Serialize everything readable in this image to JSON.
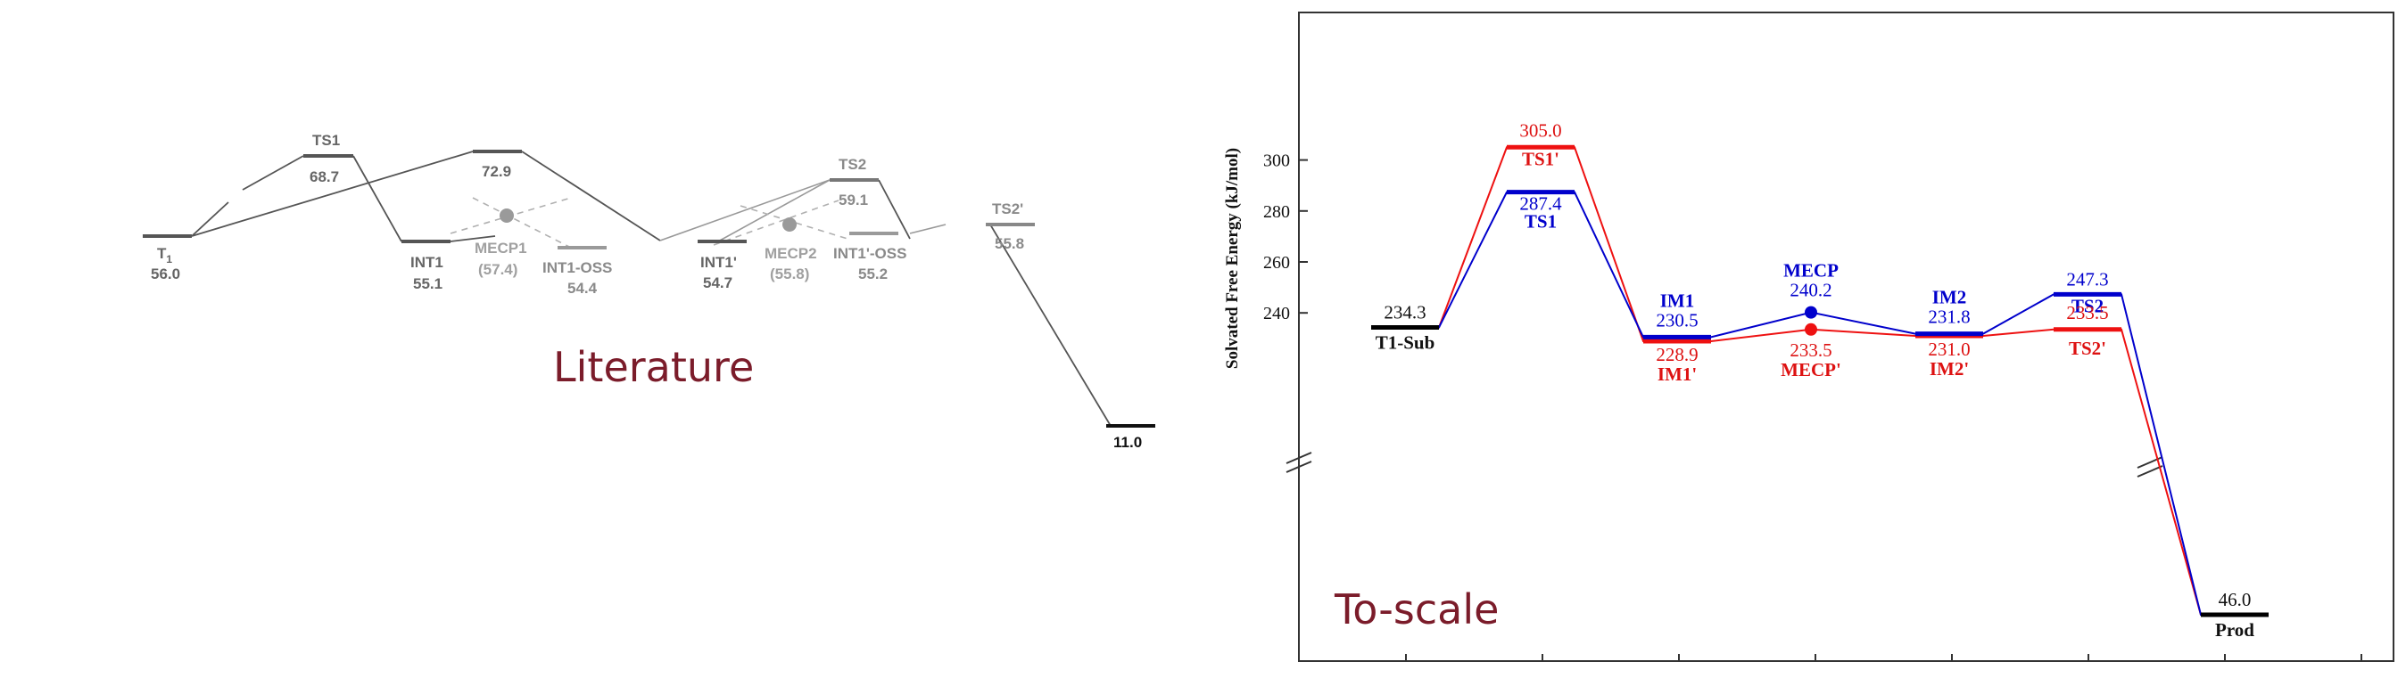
{
  "captions": {
    "left": "Literature",
    "right": "To-scale"
  },
  "chart_data": [
    {
      "type": "line",
      "name": "literature",
      "levels": [
        {
          "id": "T1",
          "label": "T",
          "sub": "1",
          "value": "56.0",
          "value_shown": true,
          "step": 0
        },
        {
          "id": "TS1",
          "label": "TS1",
          "value": "68.7",
          "value_shown": true,
          "step": 1
        },
        {
          "id": "INT1",
          "label": "INT1",
          "value": "55.1",
          "value_shown": true,
          "step": 2
        },
        {
          "id": "U",
          "label": "",
          "value": "72.9",
          "value_shown": true,
          "step": 2.5
        },
        {
          "id": "MECP1",
          "label": "MECP1",
          "value": "(57.4)",
          "value_shown": true,
          "step": 2.5
        },
        {
          "id": "OSS1",
          "label": "INT1-OSS",
          "value": "54.4",
          "value_shown": true,
          "step": 3
        },
        {
          "id": "INT1P",
          "label": "INT1'",
          "value": "54.7",
          "value_shown": true,
          "step": 4
        },
        {
          "id": "TS2",
          "label": "TS2",
          "value": "59.1",
          "value_shown": true,
          "step": 4.5
        },
        {
          "id": "MECP2",
          "label": "MECP2",
          "value": "(55.8)",
          "value_shown": true,
          "step": 4.5
        },
        {
          "id": "OSS2",
          "label": "INT1'-OSS",
          "value": "55.2",
          "value_shown": true,
          "step": 5
        },
        {
          "id": "TS2P",
          "label": "TS2'",
          "value": "55.8",
          "value_shown": true,
          "step": 6
        },
        {
          "id": "P",
          "label": "",
          "value": "11.0",
          "value_shown": true,
          "step": 7
        }
      ]
    },
    {
      "type": "line",
      "name": "to-scale",
      "ylabel": "Solvated Free Energy (kJ/mol)",
      "ylim": [
        220,
        315
      ],
      "yticks": [
        240,
        260,
        280,
        300
      ],
      "axis_break": true,
      "x": [
        "T1-Sub",
        "TS1",
        "IM1",
        "MECP",
        "IM2",
        "TS2",
        "Prod"
      ],
      "series": [
        {
          "color": "#0000cc",
          "labels": [
            "T1-Sub",
            "TS1",
            "IM1",
            "MECP",
            "IM2",
            "TS2",
            "Prod"
          ],
          "values": [
            234.3,
            287.4,
            230.5,
            240.2,
            231.8,
            247.3,
            46.0
          ],
          "value_text": [
            "234.3",
            "287.4",
            "230.5",
            "240.2",
            "231.8",
            "247.3",
            "46.0"
          ]
        },
        {
          "color": "#ee1111",
          "labels": [
            "",
            "TS1'",
            "IM1'",
            "MECP'",
            "IM2'",
            "TS2'",
            ""
          ],
          "values": [
            234.3,
            305.0,
            228.9,
            233.5,
            231.0,
            233.5,
            46.0
          ],
          "value_text": [
            "",
            "305.0",
            "228.9",
            "233.5",
            "231.0",
            "233.5",
            ""
          ]
        }
      ]
    }
  ]
}
